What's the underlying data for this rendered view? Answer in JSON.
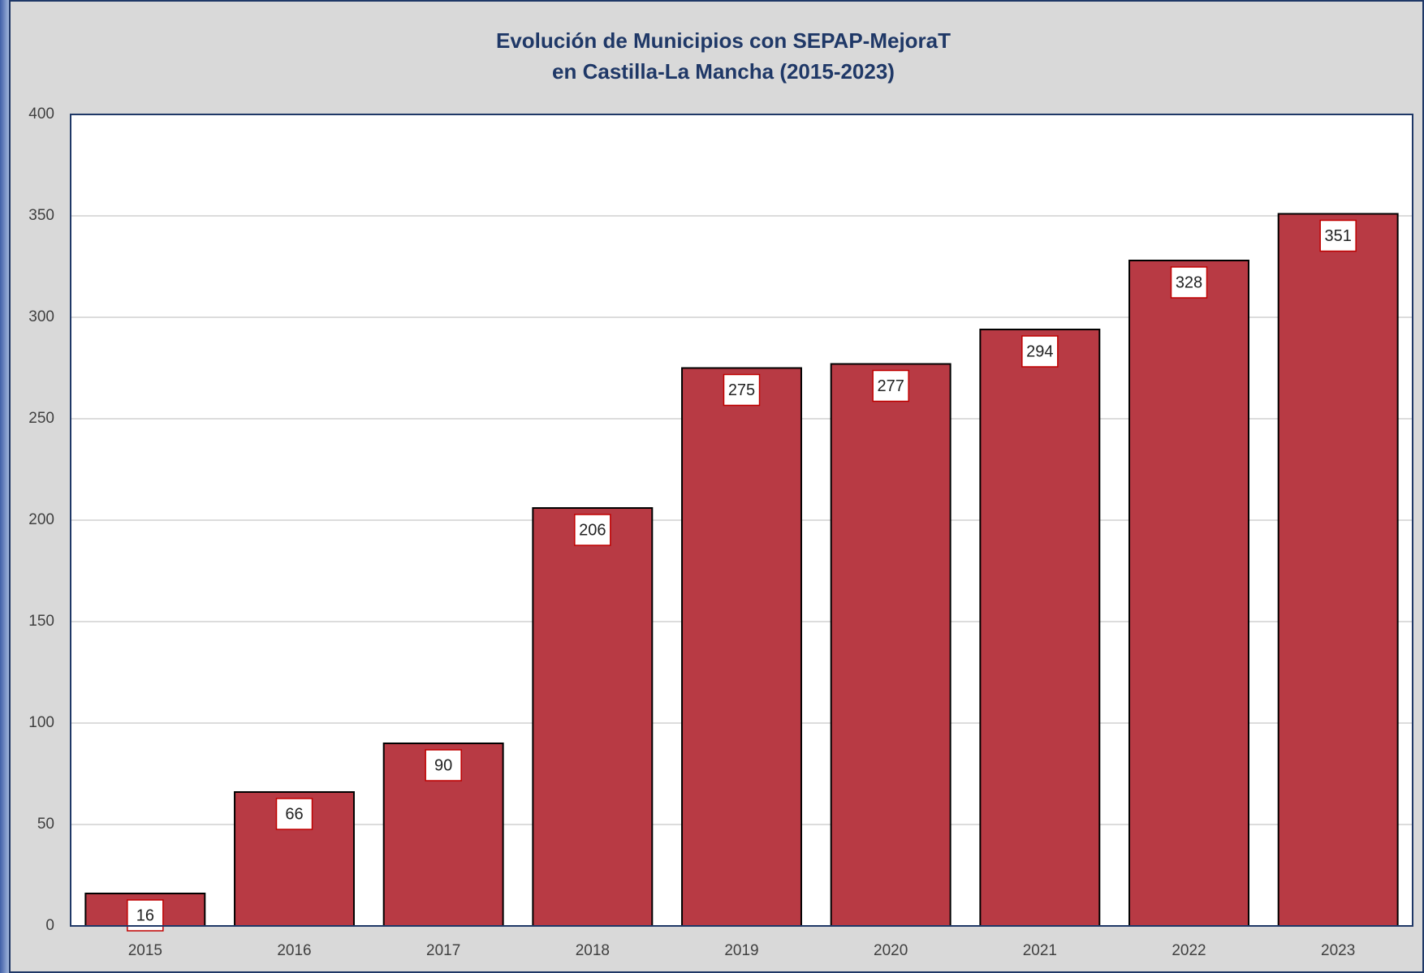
{
  "chart_data": {
    "type": "bar",
    "title": [
      "Evolución de Municipios con SEPAP-MejoraT",
      "en Castilla-La Mancha (2015-2023)"
    ],
    "categories": [
      "2015",
      "2016",
      "2017",
      "2018",
      "2019",
      "2020",
      "2021",
      "2022",
      "2023"
    ],
    "values": [
      16,
      66,
      90,
      206,
      275,
      277,
      294,
      328,
      351
    ],
    "color": "#b83a44",
    "ylim": [
      0,
      400
    ],
    "yticks": [
      0,
      50,
      100,
      150,
      200,
      250,
      300,
      350,
      400
    ],
    "grid": true
  }
}
